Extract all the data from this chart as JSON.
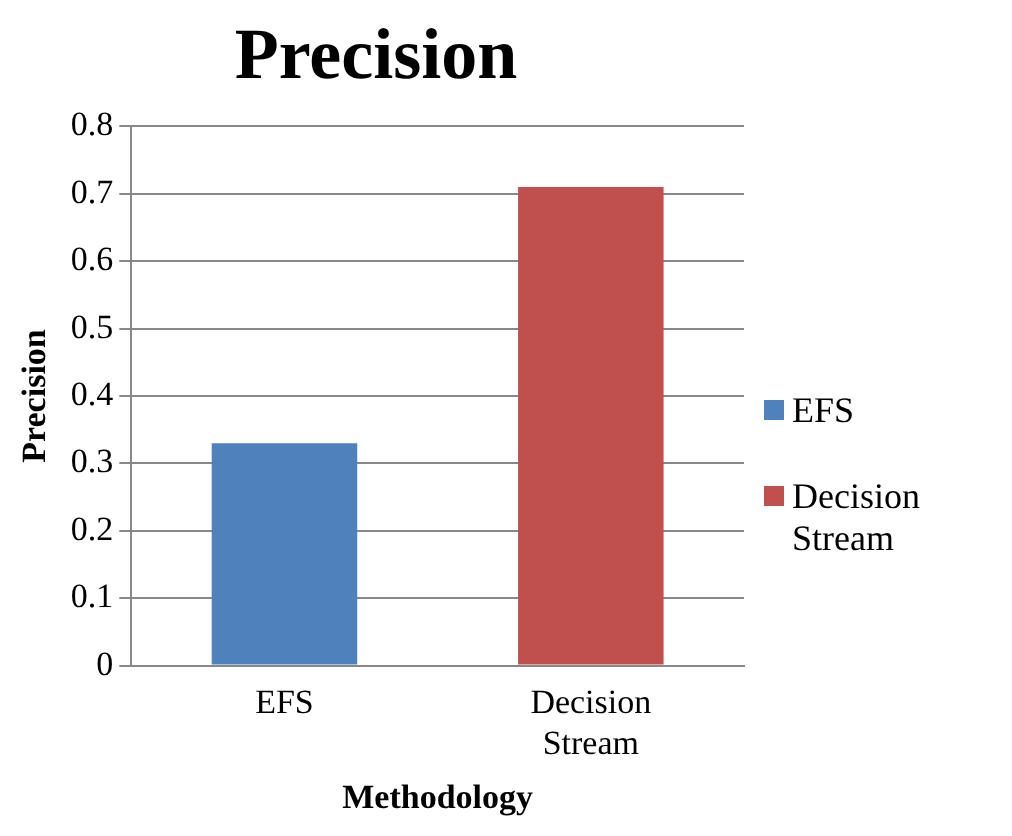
{
  "chart_data": {
    "type": "bar",
    "title": "Precision",
    "xlabel": "Methodology",
    "ylabel": "Precision",
    "categories": [
      "EFS",
      "Decision Stream"
    ],
    "series": [
      {
        "name": "EFS",
        "color": "#4f81bd",
        "values": [
          0.33,
          null
        ]
      },
      {
        "name": "Decision Stream",
        "color": "#c0504d",
        "values": [
          null,
          0.71
        ]
      }
    ],
    "ylim": [
      0,
      0.8
    ],
    "yticks": [
      0,
      0.1,
      0.2,
      0.3,
      0.4,
      0.5,
      0.6,
      0.7,
      0.8
    ],
    "grid": "y",
    "legend": "right"
  }
}
